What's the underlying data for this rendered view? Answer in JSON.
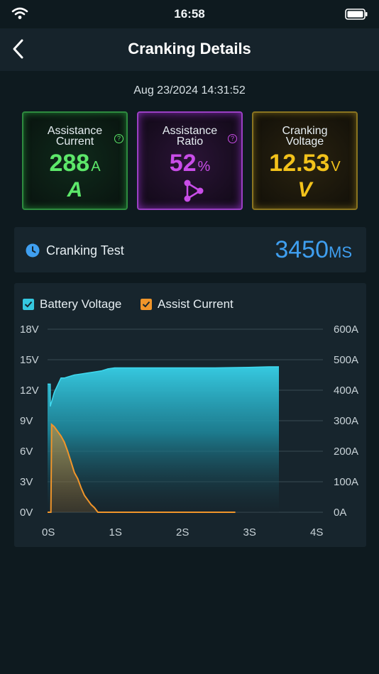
{
  "status_bar": {
    "time": "16:58"
  },
  "header": {
    "title": "Cranking Details"
  },
  "datetime": "Aug 23/2024 14:31:52",
  "cards": [
    {
      "label_line1": "Assistance",
      "label_line2": "Current",
      "value": "288",
      "unit": "A",
      "glyph": "A",
      "color": "#5de86a"
    },
    {
      "label_line1": "Assistance",
      "label_line2": "Ratio",
      "value": "52",
      "unit": "%",
      "glyph": "ratio-icon",
      "color": "#c94de8"
    },
    {
      "label_line1": "Cranking",
      "label_line2": "Voltage",
      "value": "12.53",
      "unit": "V",
      "glyph": "V",
      "color": "#f3c21b"
    }
  ],
  "cranking_test": {
    "label": "Cranking Test",
    "value": "3450",
    "unit": "MS",
    "color": "#3f9ff0"
  },
  "chart_data": {
    "type": "area",
    "legend": [
      {
        "name": "Battery Voltage",
        "color": "#35c8e0",
        "checked": true
      },
      {
        "name": "Assist Current",
        "color": "#f0952a",
        "checked": true
      }
    ],
    "x_ticks": [
      "0S",
      "1S",
      "2S",
      "3S",
      "4S"
    ],
    "y_left_ticks": [
      "0V",
      "3V",
      "6V",
      "9V",
      "12V",
      "15V",
      "18V"
    ],
    "y_right_ticks": [
      "0A",
      "100A",
      "200A",
      "300A",
      "400A",
      "500A",
      "600A"
    ],
    "xlim": [
      0,
      4
    ],
    "ylim_left": [
      0,
      18
    ],
    "ylim_right": [
      0,
      600
    ],
    "grid": true,
    "series": [
      {
        "name": "Battery Voltage",
        "axis": "left",
        "x": [
          0,
          0.04,
          0.04,
          0.1,
          0.15,
          0.2,
          0.25,
          0.3,
          0.4,
          0.5,
          0.6,
          0.7,
          0.8,
          0.9,
          1.0,
          1.5,
          2.0,
          2.5,
          3.0,
          3.3,
          3.45
        ],
        "y": [
          12.6,
          12.6,
          10.4,
          11.8,
          12.5,
          13.2,
          13.2,
          13.3,
          13.5,
          13.6,
          13.7,
          13.8,
          13.9,
          14.1,
          14.2,
          14.2,
          14.2,
          14.2,
          14.25,
          14.3,
          14.3
        ]
      },
      {
        "name": "Assist Current",
        "axis": "right",
        "x": [
          0,
          0.05,
          0.06,
          0.1,
          0.15,
          0.2,
          0.25,
          0.3,
          0.35,
          0.4,
          0.45,
          0.5,
          0.55,
          0.6,
          0.65,
          0.7,
          0.75,
          0.8,
          2.8
        ],
        "y": [
          0,
          0,
          288,
          280,
          265,
          250,
          230,
          200,
          165,
          130,
          110,
          80,
          55,
          40,
          25,
          15,
          0,
          0,
          0
        ]
      }
    ]
  }
}
